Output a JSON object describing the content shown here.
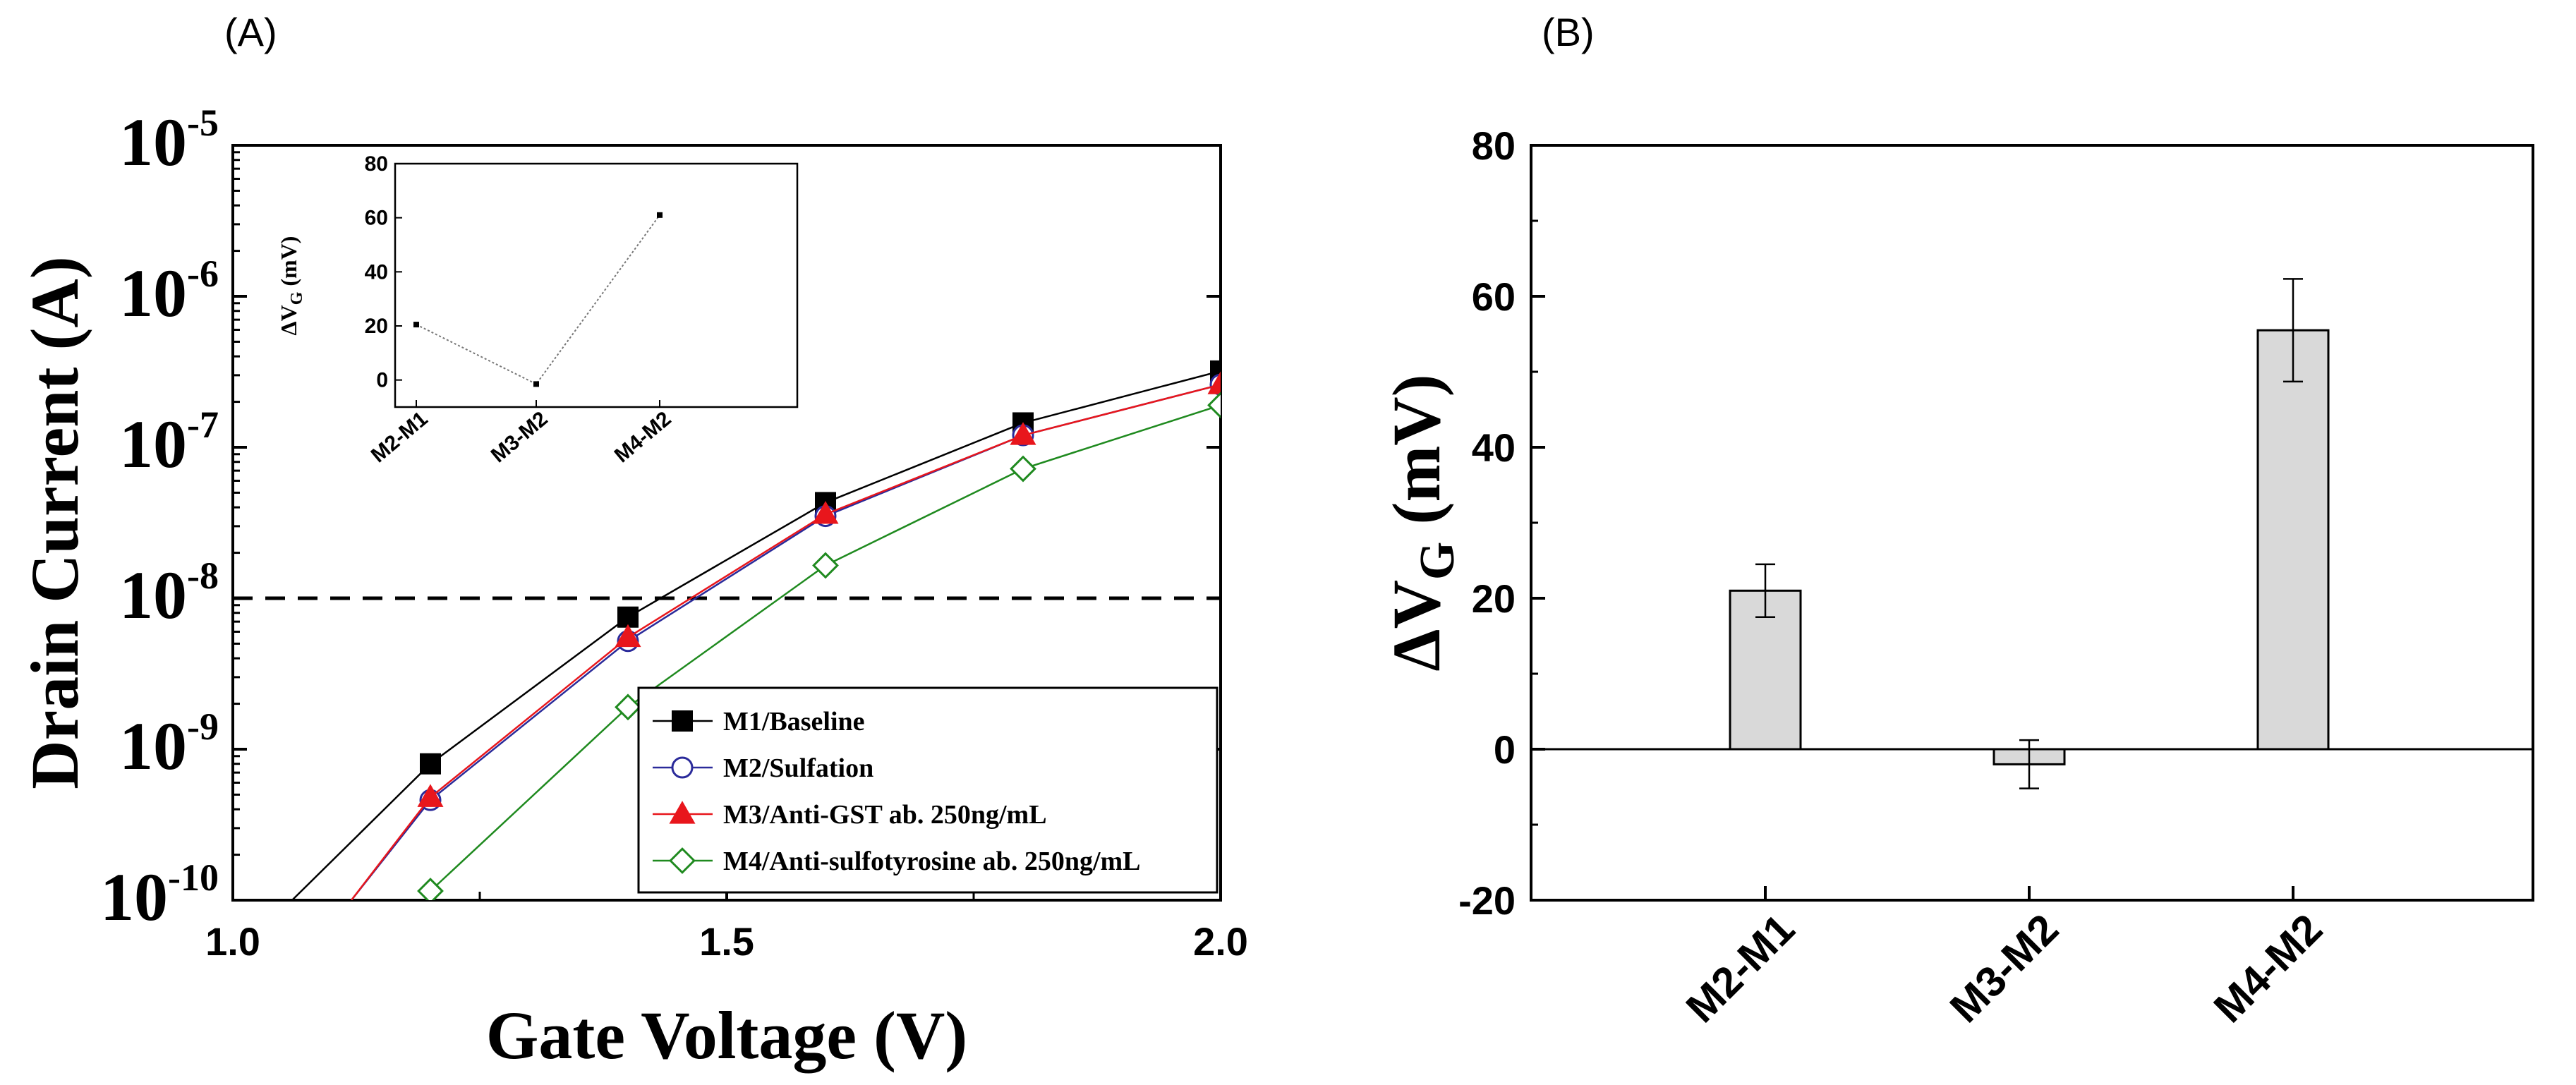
{
  "chart_data": [
    {
      "panel": "(A)",
      "type": "line",
      "xlabel": "Gate Voltage (V)",
      "ylabel": "Drain Current (A)",
      "yscale": "log",
      "xlim": [
        1.0,
        2.0
      ],
      "ylim_exp": [
        -10,
        -5
      ],
      "x_ticks": [
        "1.0",
        "1.5",
        "2.0"
      ],
      "y_ticks": [
        {
          "base": "10",
          "exp": "-10",
          "value": -10
        },
        {
          "base": "10",
          "exp": "-9",
          "value": -9
        },
        {
          "base": "10",
          "exp": "-8",
          "value": -8
        },
        {
          "base": "10",
          "exp": "-7",
          "value": -7
        },
        {
          "base": "10",
          "exp": "-6",
          "value": -6
        },
        {
          "base": "10",
          "exp": "-5",
          "value": -5
        }
      ],
      "threshold_current": 1e-08,
      "legend_position": "bottom-right",
      "series": [
        {
          "name": "M1/Baseline",
          "color": "#000000",
          "marker": "square",
          "fill": "#000000",
          "x": [
            1.06,
            1.2,
            1.4,
            1.6,
            1.8,
            2.0
          ],
          "y": [
            1e-10,
            8e-10,
            7.5e-09,
            4.3e-08,
            1.45e-07,
            3.2e-07
          ]
        },
        {
          "name": "M2/Sulfation",
          "color": "#2a2a9a",
          "marker": "circle",
          "fill": "none",
          "x": [
            1.12,
            1.2,
            1.4,
            1.6,
            1.8,
            2.0
          ],
          "y": [
            1e-10,
            4.6e-10,
            5.2e-09,
            3.5e-08,
            1.2e-07,
            2.6e-07
          ]
        },
        {
          "name": "M3/Anti-GST ab. 250ng/mL",
          "color": "#e8161c",
          "marker": "triangle",
          "fill": "#e8161c",
          "x": [
            1.12,
            1.2,
            1.4,
            1.6,
            1.8,
            2.0
          ],
          "y": [
            1e-10,
            4.8e-10,
            5.5e-09,
            3.6e-08,
            1.2e-07,
            2.6e-07
          ]
        },
        {
          "name": "M4/Anti-sulfotyrosine ab. 250ng/mL",
          "color": "#1f8a1f",
          "marker": "diamond",
          "fill": "none",
          "x": [
            1.2,
            1.4,
            1.6,
            1.8,
            2.0
          ],
          "y": [
            1.15e-10,
            1.9e-09,
            1.65e-08,
            7.2e-08,
            1.9e-07
          ]
        }
      ],
      "inset": {
        "type": "line",
        "ylabel": "ΔV",
        "ylabel_sub": "G",
        "ylabel_unit": " (mV)",
        "categories": [
          "M2-M1",
          "M3-M2",
          "M4-M2"
        ],
        "values": [
          20.5,
          -1.5,
          61
        ],
        "ylim": [
          -10,
          80
        ],
        "y_ticks": [
          "0",
          "20",
          "40",
          "60",
          "80"
        ]
      }
    },
    {
      "panel": "(B)",
      "type": "bar",
      "ylabel": "ΔV",
      "ylabel_sub": "G",
      "ylabel_unit": " (mV)",
      "categories": [
        "M2-M1",
        "M3-M2",
        "M4-M2"
      ],
      "values": [
        21,
        -2,
        55.5
      ],
      "errors": [
        3.5,
        3.2,
        6.8
      ],
      "ylim": [
        -20,
        80
      ],
      "y_ticks": [
        "-20",
        "0",
        "20",
        "40",
        "60",
        "80"
      ],
      "bar_color": "#d9d9d9"
    }
  ]
}
